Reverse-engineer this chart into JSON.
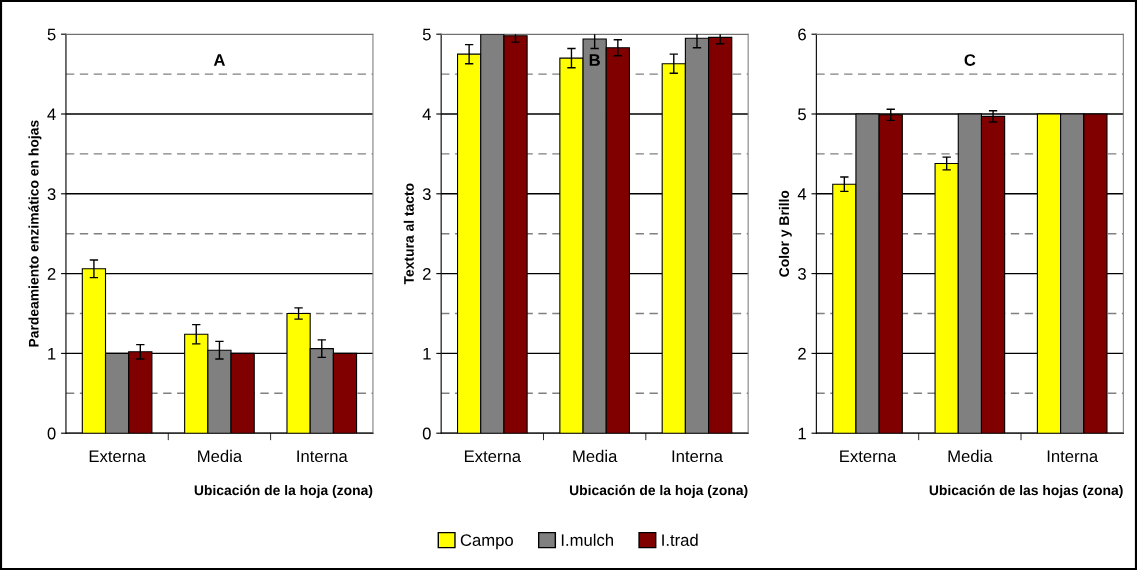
{
  "chart_data": [
    {
      "type": "bar",
      "title": "A",
      "xlabel": "Ubicación de la hoja (zona)",
      "ylabel": "Pardeamiento enzimático en hojas",
      "categories": [
        "Externa",
        "Media",
        "Interna"
      ],
      "ylim": [
        0,
        5
      ],
      "yticks": [
        0,
        1,
        2,
        3,
        4,
        5
      ],
      "grid": "y",
      "legend": "bottom",
      "ref_lines": [
        {
          "axis": "y",
          "value": 0.5,
          "color": "#808080",
          "line_style": "dashed"
        },
        {
          "axis": "y",
          "value": 1.5,
          "color": "#808080",
          "line_style": "dashed"
        },
        {
          "axis": "y",
          "value": 2.5,
          "color": "#808080",
          "line_style": "dashed"
        },
        {
          "axis": "y",
          "value": 3.5,
          "color": "#808080",
          "line_style": "dashed"
        },
        {
          "axis": "y",
          "value": 4.5,
          "color": "#808080",
          "line_style": "dashed"
        }
      ],
      "series": [
        {
          "name": "Campo",
          "color": "#ffff00",
          "values": [
            2.06,
            1.24,
            1.5
          ],
          "errors": [
            0.11,
            0.12,
            0.07
          ]
        },
        {
          "name": "I.mulch",
          "color": "#808080",
          "values": [
            1.0,
            1.04,
            1.06
          ],
          "errors": [
            null,
            0.11,
            0.11
          ]
        },
        {
          "name": "I.trad",
          "color": "#800000",
          "values": [
            1.02,
            1.0,
            1.0
          ],
          "errors": [
            0.09,
            null,
            null
          ]
        }
      ]
    },
    {
      "type": "bar",
      "title": "B",
      "xlabel": "Ubicación de la hoja (zona)",
      "ylabel": "Textura al tacto",
      "categories": [
        "Externa",
        "Media",
        "Interna"
      ],
      "ylim": [
        0,
        5
      ],
      "yticks": [
        0,
        1,
        2,
        3,
        4,
        5
      ],
      "grid": "y",
      "legend": "bottom",
      "ref_lines": [
        {
          "axis": "y",
          "value": 0.5,
          "color": "#808080",
          "line_style": "dashed"
        },
        {
          "axis": "y",
          "value": 1.5,
          "color": "#808080",
          "line_style": "dashed"
        },
        {
          "axis": "y",
          "value": 2.5,
          "color": "#808080",
          "line_style": "dashed"
        },
        {
          "axis": "y",
          "value": 3.5,
          "color": "#808080",
          "line_style": "dashed"
        },
        {
          "axis": "y",
          "value": 4.5,
          "color": "#808080",
          "line_style": "dashed"
        }
      ],
      "series": [
        {
          "name": "Campo",
          "color": "#ffff00",
          "values": [
            4.75,
            4.7,
            4.63
          ],
          "errors": [
            0.12,
            0.12,
            0.12
          ]
        },
        {
          "name": "I.mulch",
          "color": "#808080",
          "values": [
            5.0,
            4.94,
            4.95
          ],
          "errors": [
            null,
            0.12,
            0.12
          ]
        },
        {
          "name": "I.trad",
          "color": "#800000",
          "values": [
            4.98,
            4.83,
            4.96
          ],
          "errors": [
            0.08,
            0.1,
            0.08
          ]
        }
      ]
    },
    {
      "type": "bar",
      "title": "C",
      "xlabel": "Ubicación de las hojas (zona)",
      "ylabel": "Color y Brillo",
      "categories": [
        "Externa",
        "Media",
        "Interna"
      ],
      "ylim": [
        1,
        6
      ],
      "yticks": [
        1,
        2,
        3,
        4,
        5,
        6
      ],
      "grid": "y",
      "legend": "bottom",
      "ref_lines": [
        {
          "axis": "y",
          "value": 1.5,
          "color": "#808080",
          "line_style": "dashed"
        },
        {
          "axis": "y",
          "value": 2.5,
          "color": "#808080",
          "line_style": "dashed"
        },
        {
          "axis": "y",
          "value": 3.5,
          "color": "#808080",
          "line_style": "dashed"
        },
        {
          "axis": "y",
          "value": 4.5,
          "color": "#808080",
          "line_style": "dashed"
        },
        {
          "axis": "y",
          "value": 5.5,
          "color": "#808080",
          "line_style": "dashed"
        }
      ],
      "series": [
        {
          "name": "Campo",
          "color": "#ffff00",
          "values": [
            4.12,
            4.38,
            5.0
          ],
          "errors": [
            0.09,
            0.08,
            null
          ]
        },
        {
          "name": "I.mulch",
          "color": "#808080",
          "values": [
            5.0,
            5.0,
            5.0
          ],
          "errors": [
            null,
            null,
            null
          ]
        },
        {
          "name": "I.trad",
          "color": "#800000",
          "values": [
            4.99,
            4.97,
            5.0
          ],
          "errors": [
            0.07,
            0.07,
            null
          ]
        }
      ]
    }
  ]
}
